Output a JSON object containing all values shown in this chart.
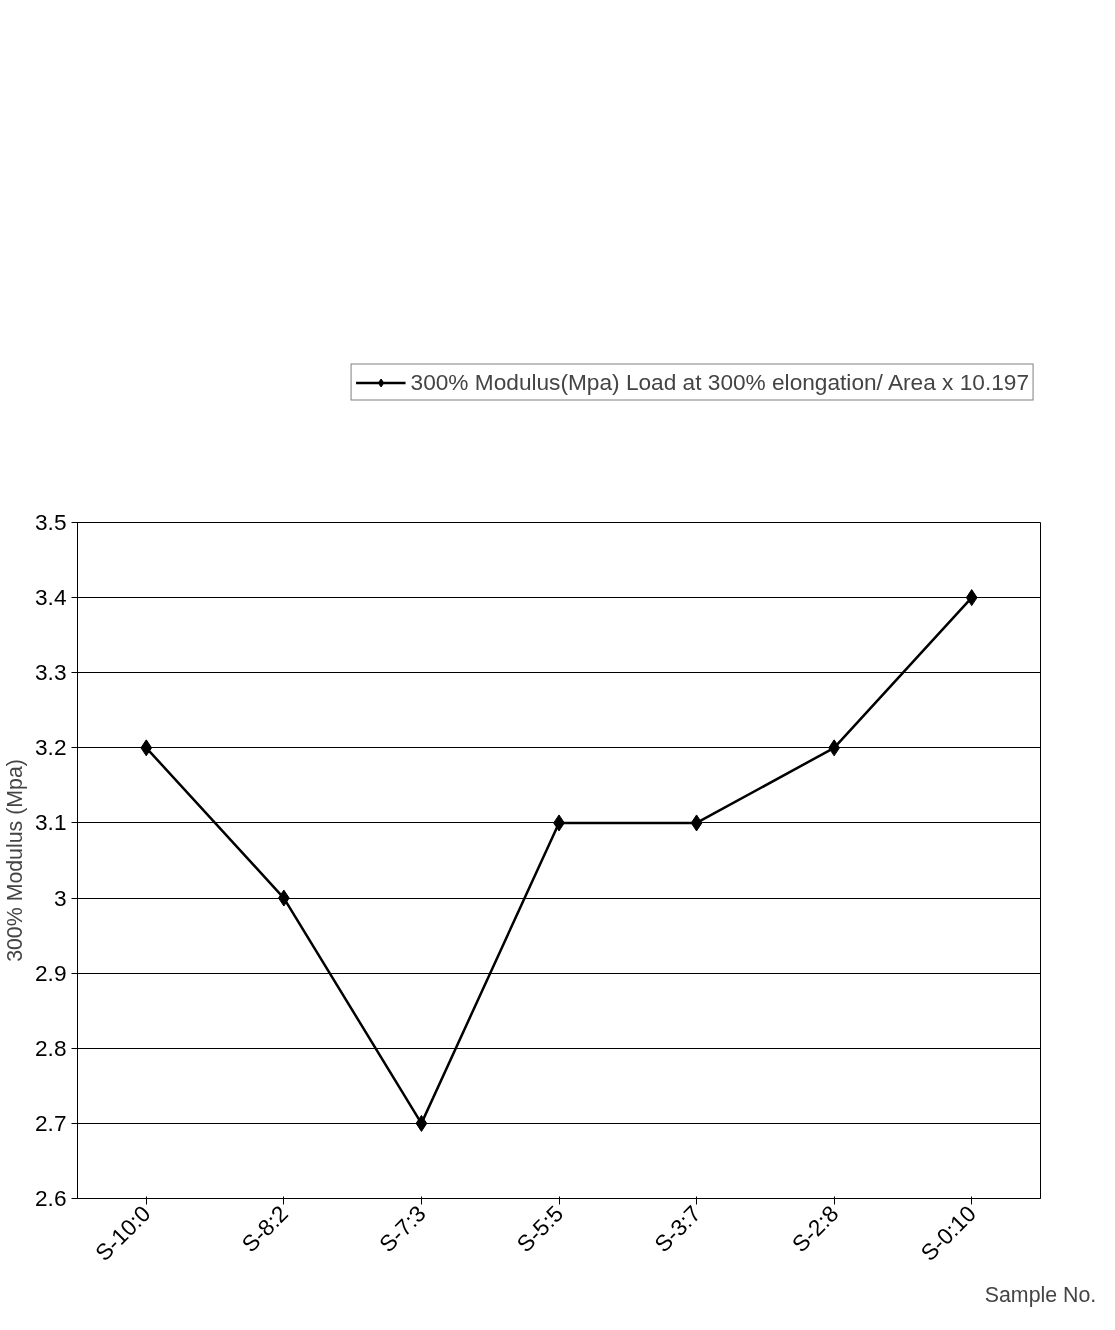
{
  "chart_data": {
    "type": "line",
    "ylabel": "300% Modulus (Mpa)",
    "xlabel": "Sample No.",
    "categories": [
      "S-10:0",
      "S-8:2",
      "S-7:3",
      "S-5:5",
      "S-3:7",
      "S-2:8",
      "S-0:10"
    ],
    "series": [
      {
        "name": "300% Modulus(Mpa) Load at 300% elongation/ Area x 10.197",
        "color": "#000000",
        "values": [
          3.2,
          3.0,
          2.7,
          3.1,
          3.1,
          3.2,
          3.4
        ]
      }
    ],
    "ylim": [
      2.6,
      3.5
    ],
    "yticks": [
      2.6,
      2.7,
      2.8,
      2.9,
      3,
      3.1,
      3.2,
      3.3,
      3.4,
      3.5
    ],
    "grid": "y",
    "legend": "top right",
    "marker": "diamond",
    "line_style": "solid"
  }
}
